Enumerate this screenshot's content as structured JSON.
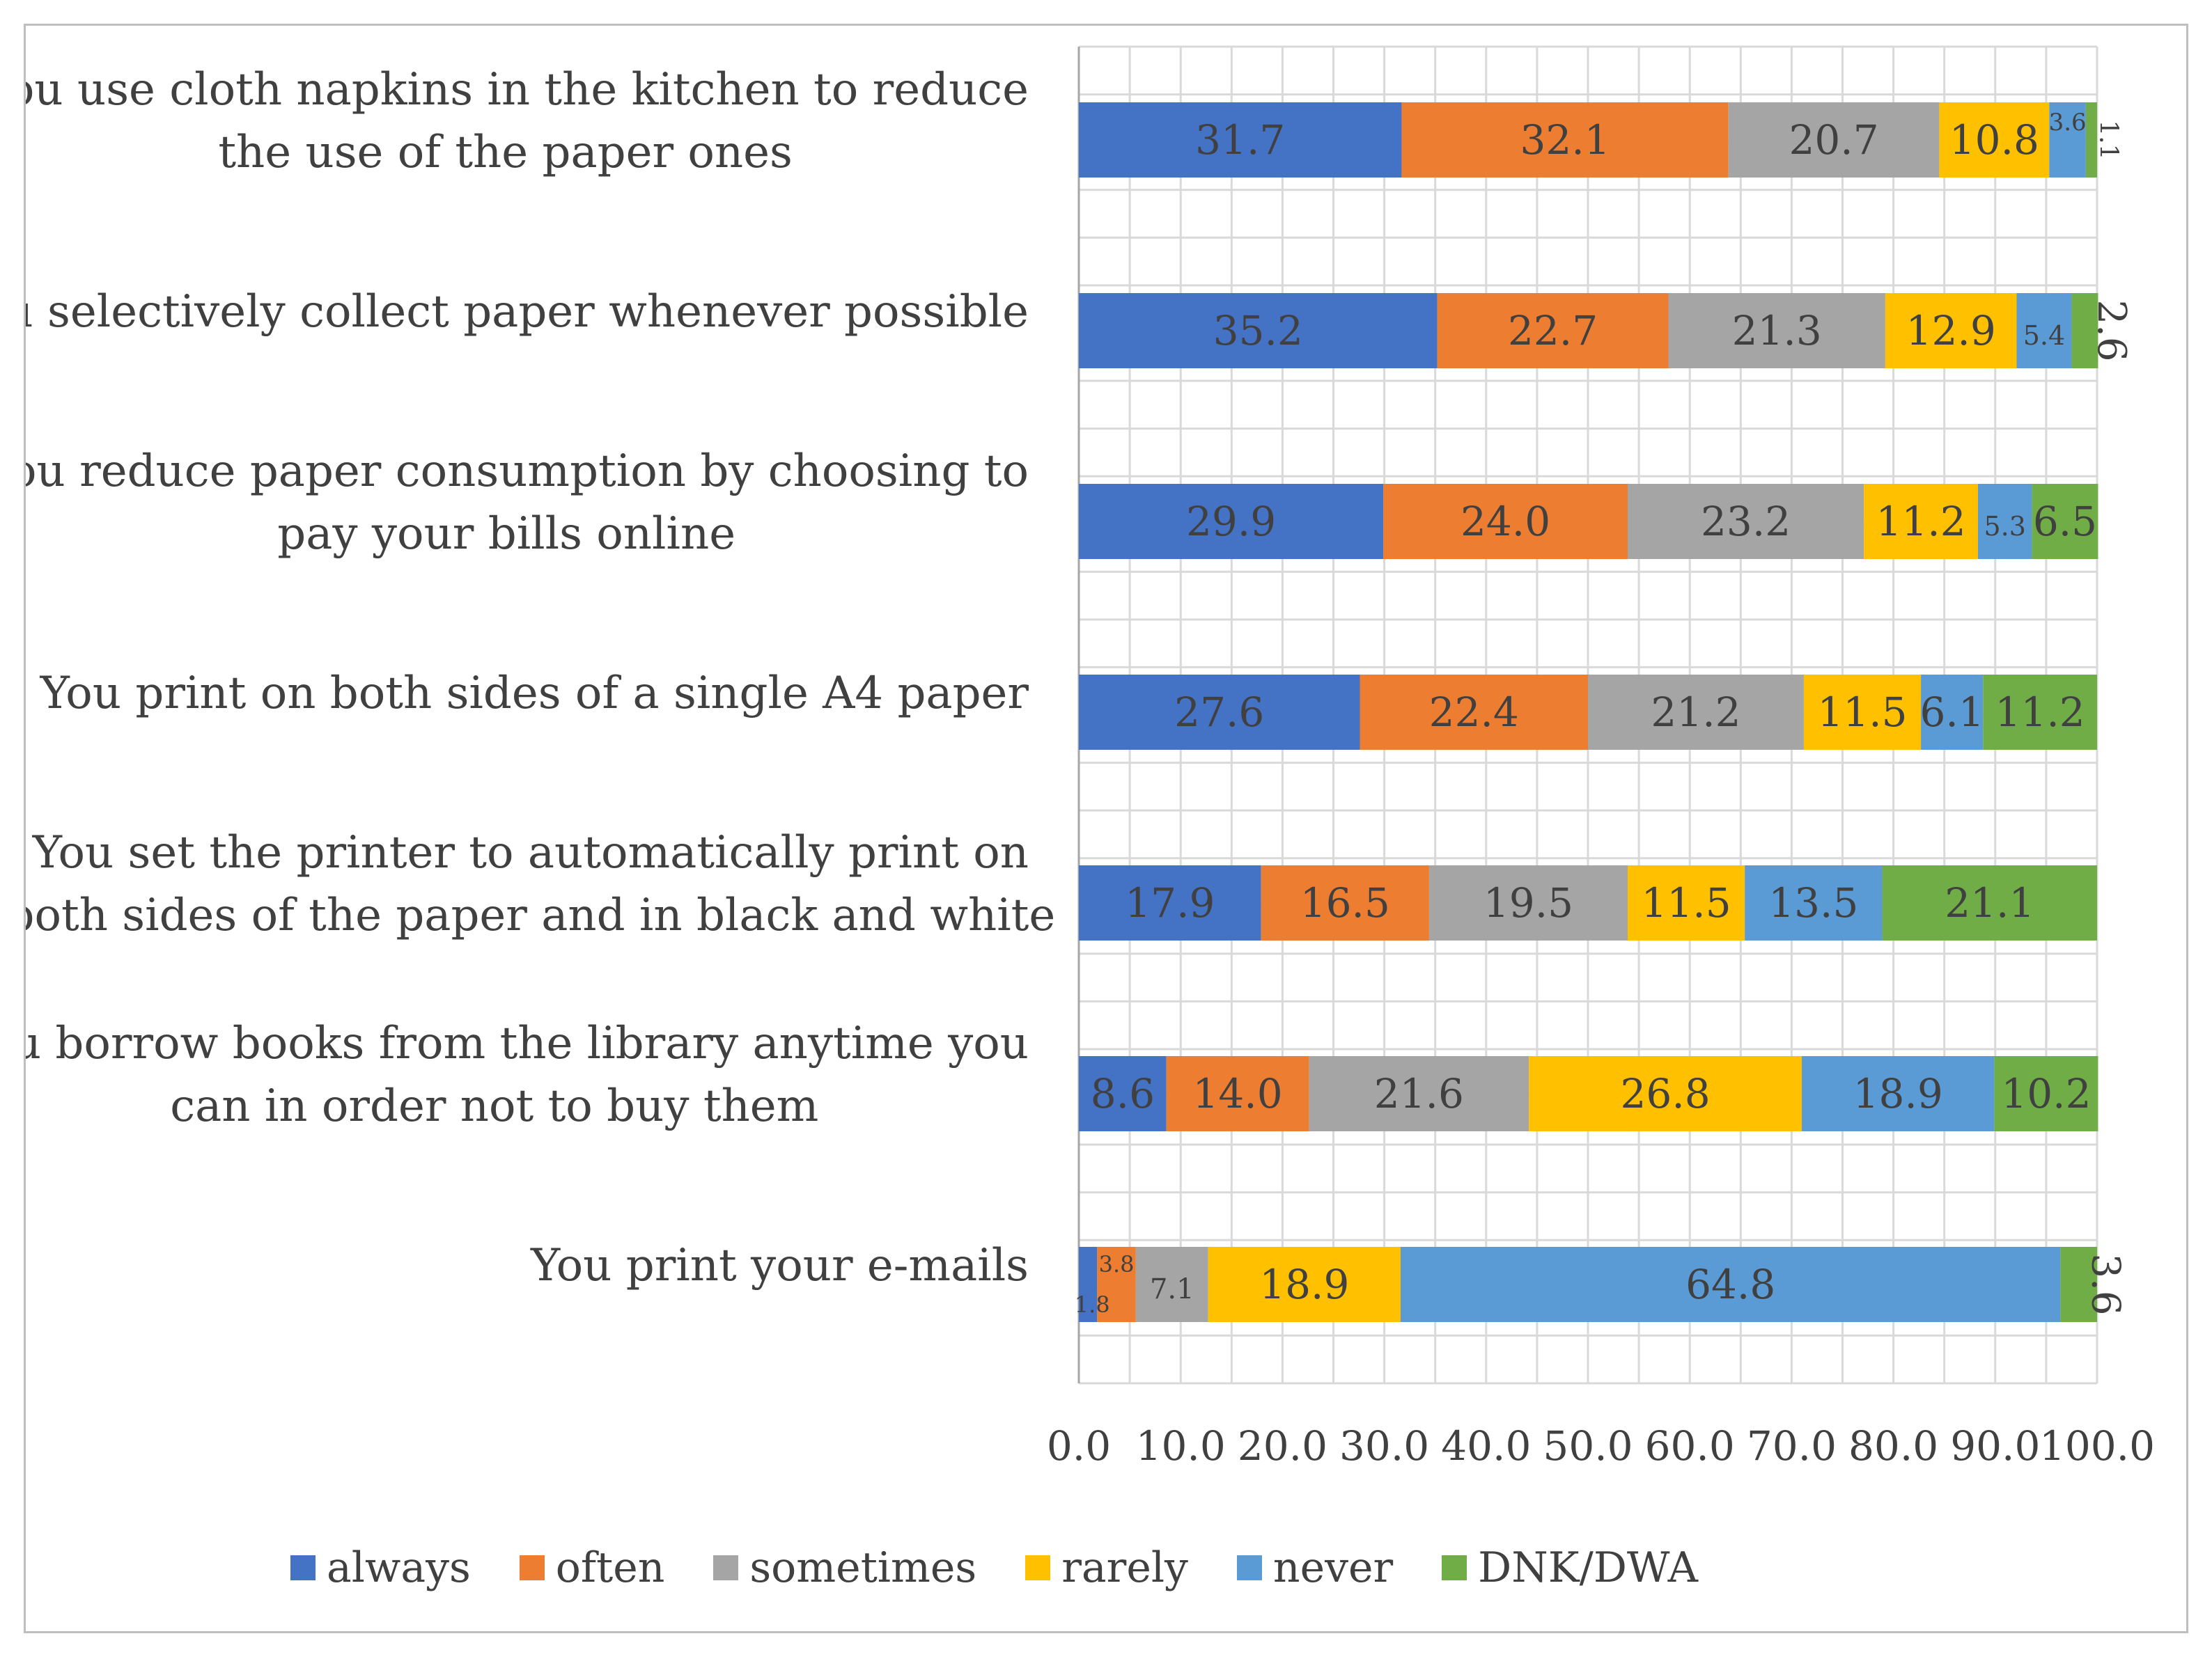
{
  "chart_data": {
    "type": "bar",
    "orientation": "horizontal",
    "stacked": true,
    "title": "",
    "xlabel": "",
    "ylabel": "",
    "xlim": [
      0,
      100
    ],
    "x_ticks": [
      "0.0",
      "10.0",
      "20.0",
      "30.0",
      "40.0",
      "50.0",
      "60.0",
      "70.0",
      "80.0",
      "90.0",
      "100.0"
    ],
    "grid": true,
    "legend_position": "bottom",
    "categories": [
      [
        "You use cloth napkins in the kitchen to reduce",
        "the use of the paper ones"
      ],
      [
        "You selectively collect paper whenever possible"
      ],
      [
        "You reduce paper consumption by choosing to",
        "pay your bills online"
      ],
      [
        "You print on both sides of a single A4 paper"
      ],
      [
        "You set the printer to automatically print on",
        "both sides of the paper and in black and white"
      ],
      [
        "You borrow books from the library anytime you",
        "can in order not to buy them"
      ],
      [
        "You print your e-mails"
      ]
    ],
    "series": [
      {
        "name": "always",
        "color": "#4472c4",
        "values": [
          31.7,
          35.2,
          29.9,
          27.6,
          17.9,
          8.6,
          1.8
        ],
        "labels": [
          "31.7",
          "35.2",
          "29.9",
          "27.6",
          "17.9",
          "8.6",
          "1.8"
        ]
      },
      {
        "name": "often",
        "color": "#ed7d31",
        "values": [
          32.1,
          22.7,
          24.0,
          22.4,
          16.5,
          14.0,
          3.8
        ],
        "labels": [
          "32.1",
          "22.7",
          "24.0",
          "22.4",
          "16.5",
          "14.0",
          "3.8"
        ]
      },
      {
        "name": "sometimes",
        "color": "#a5a5a5",
        "values": [
          20.7,
          21.3,
          23.2,
          21.2,
          19.5,
          21.6,
          7.1
        ],
        "labels": [
          "20.7",
          "21.3",
          "23.2",
          "21.2",
          "19.5",
          "21.6",
          "7.1"
        ]
      },
      {
        "name": "rarely",
        "color": "#ffc000",
        "values": [
          10.8,
          12.9,
          11.2,
          11.5,
          11.5,
          26.8,
          18.9
        ],
        "labels": [
          "10.8",
          "12.9",
          "11.2",
          "11.5",
          "11.5",
          "26.8",
          "18.9"
        ]
      },
      {
        "name": "never",
        "color": "#5b9bd5",
        "values": [
          3.6,
          5.4,
          5.3,
          6.1,
          13.5,
          18.9,
          64.8
        ],
        "labels": [
          "3.6",
          "5.4",
          "5.3",
          "6.1",
          "13.5",
          "18.9",
          "64.8"
        ]
      },
      {
        "name": "DNK/DWA",
        "color": "#70ad47",
        "values": [
          1.1,
          2.6,
          6.5,
          11.2,
          21.1,
          10.2,
          3.6
        ],
        "labels": [
          "1.1",
          "2.6",
          "6.5",
          "11.2",
          "21.1",
          "10.2",
          "3.6"
        ]
      }
    ]
  }
}
